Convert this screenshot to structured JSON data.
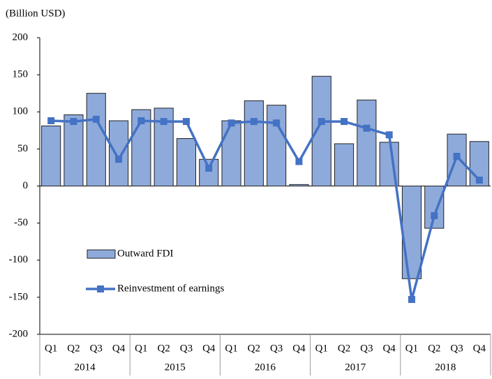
{
  "chart_data": {
    "type": "combo",
    "y_axis_label": "(Billion USD)",
    "categories": [
      "Q1",
      "Q2",
      "Q3",
      "Q4",
      "Q1",
      "Q2",
      "Q3",
      "Q4",
      "Q1",
      "Q2",
      "Q3",
      "Q4",
      "Q1",
      "Q2",
      "Q3",
      "Q4",
      "Q1",
      "Q2",
      "Q3",
      "Q4"
    ],
    "groups": [
      "2014",
      "2015",
      "2016",
      "2017",
      "2018"
    ],
    "series": [
      {
        "name": "Outward FDI",
        "type": "bar",
        "color": "#8eaadb",
        "values": [
          81,
          96,
          125,
          88,
          103,
          105,
          64,
          36,
          88,
          115,
          109,
          2,
          148,
          57,
          116,
          59,
          -125,
          -57,
          70,
          60
        ]
      },
      {
        "name": "Reinvestment of earnings",
        "type": "line",
        "color": "#4472c4",
        "values": [
          88,
          87,
          90,
          36,
          88,
          87,
          87,
          24,
          85,
          87,
          85,
          33,
          87,
          87,
          78,
          69,
          -153,
          -40,
          40,
          8
        ]
      }
    ],
    "ylim": [
      -200,
      200
    ],
    "yticks": [
      -200,
      -150,
      -100,
      -50,
      0,
      50,
      100,
      150,
      200
    ],
    "grid": false,
    "legend": "left"
  }
}
